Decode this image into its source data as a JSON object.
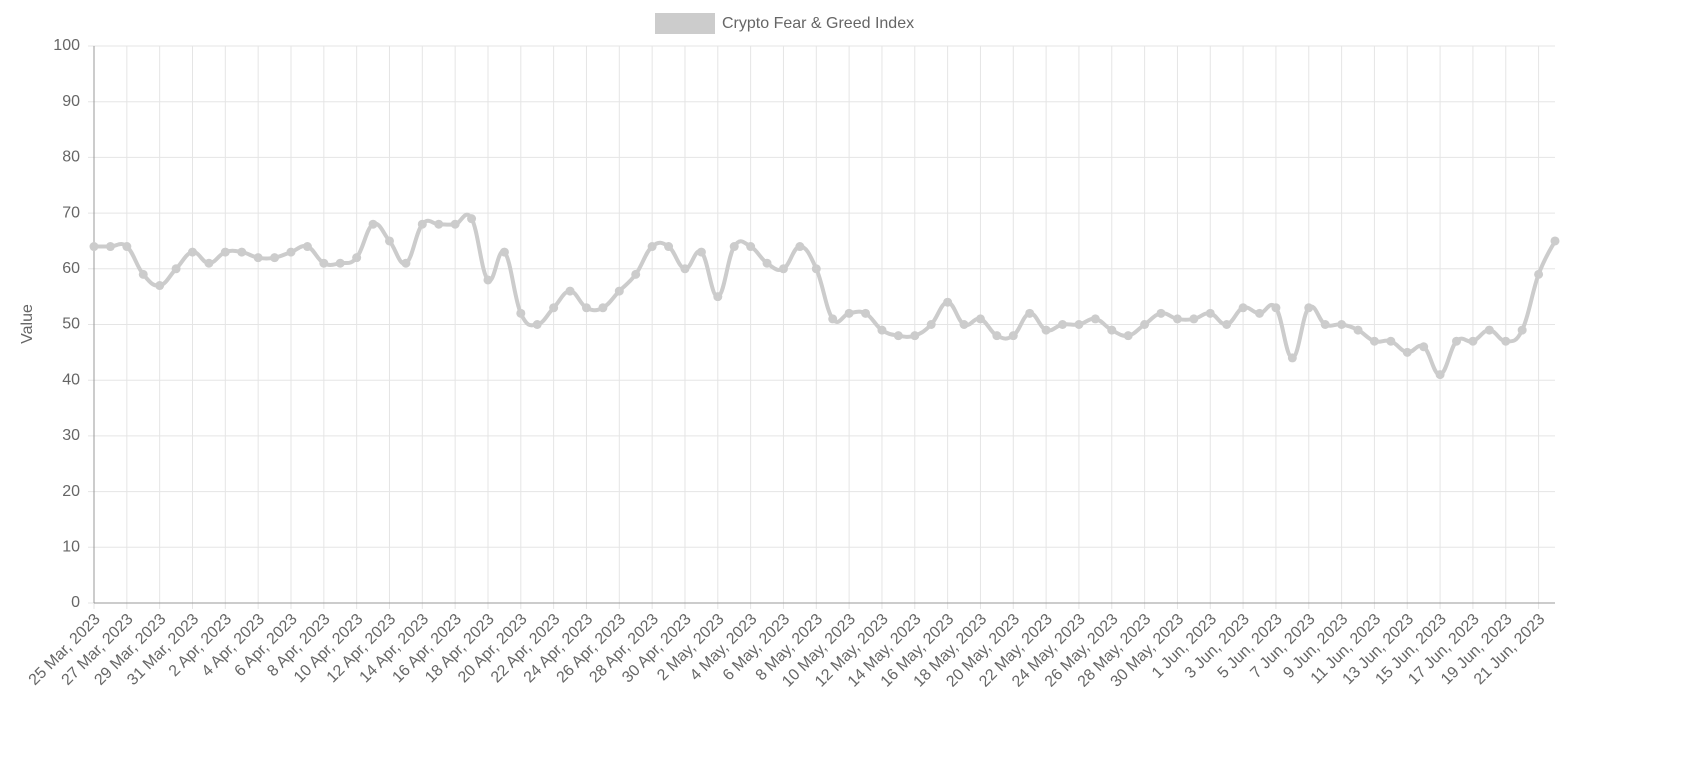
{
  "chart_data": {
    "type": "line",
    "y_label": "Value",
    "categories": [
      "25 Mar, 2023",
      null,
      "27 Mar, 2023",
      null,
      "29 Mar, 2023",
      null,
      "31 Mar, 2023",
      null,
      "2 Apr, 2023",
      null,
      "4 Apr, 2023",
      null,
      "6 Apr, 2023",
      null,
      "8 Apr, 2023",
      null,
      "10 Apr, 2023",
      null,
      "12 Apr, 2023",
      null,
      "14 Apr, 2023",
      null,
      "16 Apr, 2023",
      null,
      "18 Apr, 2023",
      null,
      "20 Apr, 2023",
      null,
      "22 Apr, 2023",
      null,
      "24 Apr, 2023",
      null,
      "26 Apr, 2023",
      null,
      "28 Apr, 2023",
      null,
      "30 Apr, 2023",
      null,
      "2 May, 2023",
      null,
      "4 May, 2023",
      null,
      "6 May, 2023",
      null,
      "8 May, 2023",
      null,
      "10 May, 2023",
      null,
      "12 May, 2023",
      null,
      "14 May, 2023",
      null,
      "16 May, 2023",
      null,
      "18 May, 2023",
      null,
      "20 May, 2023",
      null,
      "22 May, 2023",
      null,
      "24 May, 2023",
      null,
      "26 May, 2023",
      null,
      "28 May, 2023",
      null,
      "30 May, 2023",
      null,
      "1 Jun, 2023",
      null,
      "3 Jun, 2023",
      null,
      "5 Jun, 2023",
      null,
      "7 Jun, 2023",
      null,
      "9 Jun, 2023",
      null,
      "11 Jun, 2023",
      null,
      "13 Jun, 2023",
      null,
      "15 Jun, 2023",
      null,
      "17 Jun, 2023",
      null,
      "19 Jun, 2023",
      null,
      "21 Jun, 2023",
      null
    ],
    "series": [
      {
        "name": "Crypto Fear & Greed Index",
        "color": "#cccccc",
        "values": [
          64,
          64,
          64,
          59,
          57,
          60,
          63,
          61,
          63,
          63,
          62,
          62,
          63,
          64,
          61,
          61,
          62,
          68,
          65,
          61,
          68,
          68,
          68,
          69,
          58,
          63,
          52,
          50,
          53,
          56,
          53,
          53,
          56,
          59,
          64,
          64,
          60,
          63,
          55,
          64,
          64,
          61,
          60,
          64,
          60,
          51,
          52,
          52,
          49,
          48,
          48,
          50,
          54,
          50,
          51,
          48,
          48,
          52,
          49,
          50,
          50,
          51,
          49,
          48,
          50,
          52,
          51,
          51,
          52,
          50,
          53,
          52,
          53,
          44,
          53,
          50,
          50,
          49,
          47,
          47,
          45,
          46,
          41,
          47,
          47,
          49,
          47,
          49,
          59,
          65
        ]
      }
    ],
    "ylim": [
      0,
      100
    ],
    "yticks": [
      0,
      10,
      20,
      30,
      40,
      50,
      60,
      70,
      80,
      90,
      100
    ],
    "grid": true,
    "legend": "top"
  }
}
